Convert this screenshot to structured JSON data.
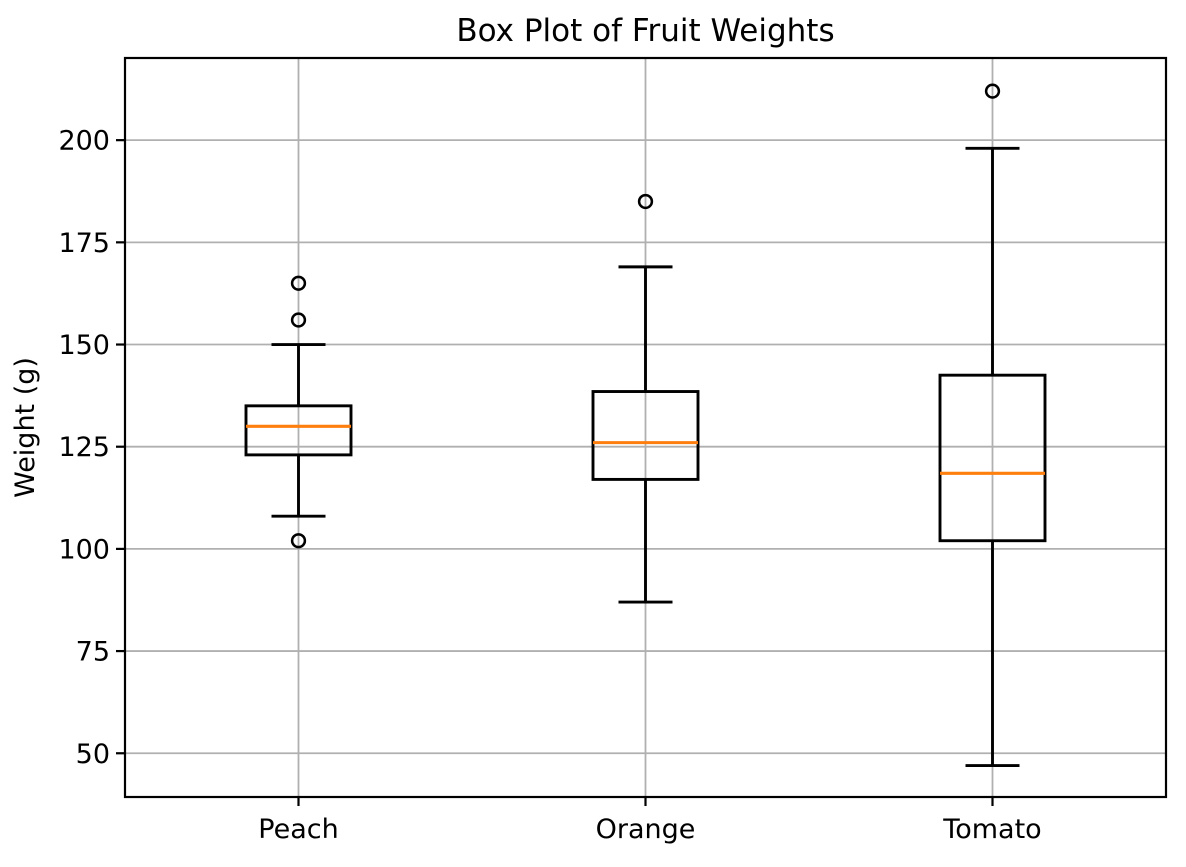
{
  "chart_data": {
    "type": "box",
    "title": "Box Plot of Fruit Weights",
    "xlabel": "",
    "ylabel": "Weight (g)",
    "categories": [
      "Peach",
      "Orange",
      "Tomato"
    ],
    "yticks": [
      50,
      75,
      100,
      125,
      150,
      175,
      200
    ],
    "ylim": [
      39.3,
      220.1
    ],
    "grid": true,
    "legend": false,
    "series": [
      {
        "name": "Peach",
        "whisker_low": 108,
        "q1": 123,
        "median": 130,
        "q3": 135,
        "whisker_high": 150,
        "outliers": [
          102,
          156,
          165
        ]
      },
      {
        "name": "Orange",
        "whisker_low": 87,
        "q1": 117,
        "median": 126,
        "q3": 138.5,
        "whisker_high": 169,
        "outliers": [
          185
        ]
      },
      {
        "name": "Tomato",
        "whisker_low": 47,
        "q1": 102,
        "median": 118.5,
        "q3": 142.5,
        "whisker_high": 198,
        "outliers": [
          212
        ]
      }
    ],
    "colors": {
      "median": "#ff7f0e",
      "box": "#000000",
      "whisker": "#000000",
      "cap": "#000000",
      "flier_edge": "#000000",
      "grid": "#b0b0b0",
      "spine": "#000000",
      "background": "#ffffff",
      "text": "#000000"
    }
  }
}
